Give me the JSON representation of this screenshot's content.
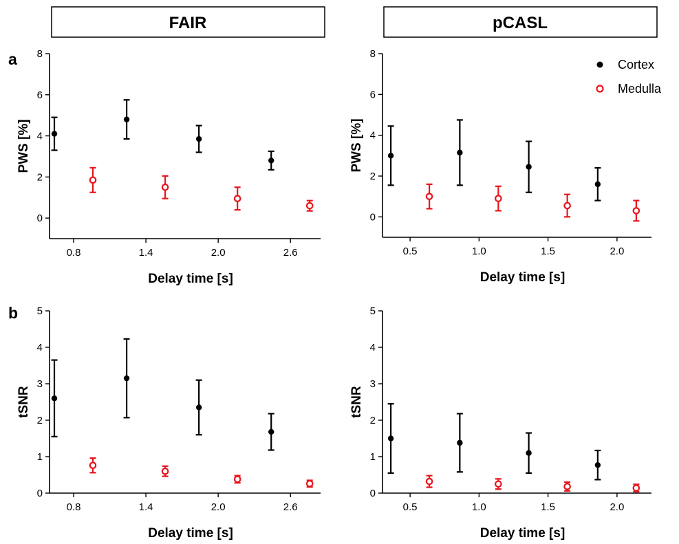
{
  "headers": {
    "left": "FAIR",
    "right": "pCASL"
  },
  "panel_labels": {
    "top": "a",
    "bottom": "b"
  },
  "legend": {
    "cortex": "Cortex",
    "medulla": "Medulla",
    "placement": "top-right of pCASL PWS panel"
  },
  "colors": {
    "cortex": "#000000",
    "medulla": "#e8141c"
  },
  "chart_data": [
    {
      "id": "fair-pws",
      "type": "scatter",
      "method": "FAIR",
      "xlabel": "Delay time [s]",
      "ylabel": "PWS [%]",
      "xlim": [
        0.6,
        2.85
      ],
      "ylim": [
        -1,
        8
      ],
      "xticks": [
        "0.8",
        "1.4",
        "2.0",
        "2.6"
      ],
      "yticks": [
        "0",
        "2",
        "4",
        "6",
        "8"
      ],
      "series": [
        {
          "name": "Cortex",
          "x": [
            0.8,
            1.4,
            2.0,
            2.6
          ],
          "y": [
            4.1,
            4.8,
            3.85,
            2.8
          ],
          "err": [
            0.8,
            0.95,
            0.65,
            0.45
          ]
        },
        {
          "name": "Medulla",
          "x": [
            0.8,
            1.4,
            2.0,
            2.6
          ],
          "y": [
            1.85,
            1.5,
            0.95,
            0.6
          ],
          "err": [
            0.6,
            0.55,
            0.55,
            0.25
          ]
        }
      ]
    },
    {
      "id": "pcasl-pws",
      "type": "scatter",
      "method": "pCASL",
      "xlabel": "Delay time [s]",
      "ylabel": "PWS [%]",
      "xlim": [
        0.3,
        2.25
      ],
      "ylim": [
        -1,
        8
      ],
      "xticks": [
        "0.5",
        "1.0",
        "1.5",
        "2.0"
      ],
      "yticks": [
        "0",
        "2",
        "4",
        "6",
        "8"
      ],
      "series": [
        {
          "name": "Cortex",
          "x": [
            0.5,
            1.0,
            1.5,
            2.0
          ],
          "y": [
            3.0,
            3.15,
            2.45,
            1.6
          ],
          "err": [
            1.45,
            1.6,
            1.25,
            0.8
          ]
        },
        {
          "name": "Medulla",
          "x": [
            0.5,
            1.0,
            1.5,
            2.0
          ],
          "y": [
            1.0,
            0.9,
            0.55,
            0.3
          ],
          "err": [
            0.6,
            0.6,
            0.55,
            0.5
          ]
        }
      ]
    },
    {
      "id": "fair-tsnr",
      "type": "scatter",
      "method": "FAIR",
      "xlabel": "Delay time [s]",
      "ylabel": "tSNR",
      "xlim": [
        0.6,
        2.85
      ],
      "ylim": [
        0,
        5
      ],
      "xticks": [
        "0.8",
        "1.4",
        "2.0",
        "2.6"
      ],
      "yticks": [
        "0",
        "1",
        "2",
        "3",
        "4",
        "5"
      ],
      "series": [
        {
          "name": "Cortex",
          "x": [
            0.8,
            1.4,
            2.0,
            2.6
          ],
          "y": [
            2.6,
            3.15,
            2.35,
            1.68
          ],
          "err": [
            1.05,
            1.08,
            0.75,
            0.5
          ]
        },
        {
          "name": "Medulla",
          "x": [
            0.8,
            1.4,
            2.0,
            2.6
          ],
          "y": [
            0.76,
            0.6,
            0.38,
            0.26
          ],
          "err": [
            0.2,
            0.14,
            0.1,
            0.09
          ]
        }
      ]
    },
    {
      "id": "pcasl-tsnr",
      "type": "scatter",
      "method": "pCASL",
      "xlabel": "Delay time [s]",
      "ylabel": "tSNR",
      "xlim": [
        0.3,
        2.25
      ],
      "ylim": [
        0,
        5
      ],
      "xticks": [
        "0.5",
        "1.0",
        "1.5",
        "2.0"
      ],
      "yticks": [
        "0",
        "1",
        "2",
        "3",
        "4",
        "5"
      ],
      "series": [
        {
          "name": "Cortex",
          "x": [
            0.5,
            1.0,
            1.5,
            2.0
          ],
          "y": [
            1.5,
            1.38,
            1.1,
            0.77
          ],
          "err": [
            0.95,
            0.8,
            0.55,
            0.4
          ]
        },
        {
          "name": "Medulla",
          "x": [
            0.5,
            1.0,
            1.5,
            2.0
          ],
          "y": [
            0.32,
            0.25,
            0.18,
            0.14
          ],
          "err": [
            0.16,
            0.14,
            0.12,
            0.1
          ]
        }
      ]
    }
  ]
}
